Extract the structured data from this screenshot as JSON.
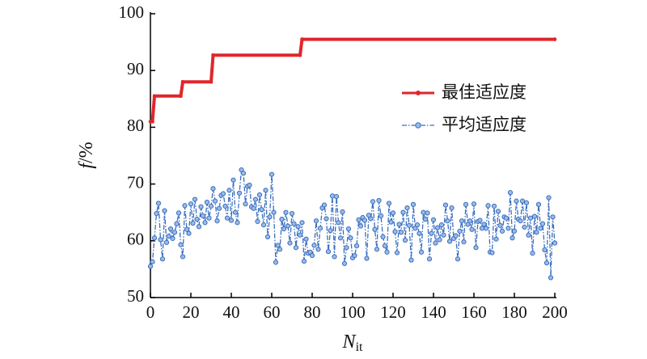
{
  "chart_data": {
    "type": "line",
    "xlabel": [
      "N",
      "it"
    ],
    "ylabel": [
      "f",
      "/%"
    ],
    "xlim": [
      0,
      200
    ],
    "xticks": [
      0,
      20,
      40,
      60,
      80,
      100,
      120,
      140,
      160,
      180,
      200
    ],
    "ylim": [
      50,
      100
    ],
    "yticks": [
      50,
      60,
      70,
      80,
      90,
      100
    ],
    "legend": "upper right",
    "series": [
      {
        "name": "最佳适应度",
        "color": "#e0262b",
        "style": "solid",
        "x": [
          0,
          1,
          2,
          15,
          16,
          30,
          31,
          74,
          75,
          200
        ],
        "values": [
          81,
          81,
          85.5,
          85.5,
          88,
          88,
          92.7,
          92.7,
          95.5,
          95.5
        ]
      },
      {
        "name": "平均适应度",
        "color": "#3a6fc0",
        "style": "dashdot",
        "x": [
          0,
          1,
          2,
          3,
          4,
          5,
          6,
          7,
          8,
          9,
          10,
          11,
          12,
          13,
          14,
          15,
          16,
          17,
          18,
          19,
          20,
          21,
          22,
          23,
          24,
          25,
          26,
          27,
          28,
          29,
          30,
          31,
          32,
          33,
          34,
          35,
          36,
          37,
          38,
          39,
          40,
          41,
          42,
          43,
          44,
          45,
          46,
          47,
          48,
          49,
          50,
          51,
          52,
          53,
          54,
          55,
          56,
          57,
          58,
          59,
          60,
          61,
          62,
          63,
          64,
          65,
          66,
          67,
          68,
          69,
          70,
          71,
          72,
          73,
          74,
          75,
          76,
          77,
          78,
          79,
          80,
          81,
          82,
          83,
          84,
          85,
          86,
          87,
          88,
          89,
          90,
          91,
          92,
          93,
          94,
          95,
          96,
          97,
          98,
          99,
          100,
          101,
          102,
          103,
          104,
          105,
          106,
          107,
          108,
          109,
          110,
          111,
          112,
          113,
          114,
          115,
          116,
          117,
          118,
          119,
          120,
          121,
          122,
          123,
          124,
          125,
          126,
          127,
          128,
          129,
          130,
          131,
          132,
          133,
          134,
          135,
          136,
          137,
          138,
          139,
          140,
          141,
          142,
          143,
          144,
          145,
          146,
          147,
          148,
          149,
          150,
          151,
          152,
          153,
          154,
          155,
          156,
          157,
          158,
          159,
          160,
          161,
          162,
          163,
          164,
          165,
          166,
          167,
          168,
          169,
          170,
          171,
          172,
          173,
          174,
          175,
          176,
          177,
          178,
          179,
          180,
          181,
          182,
          183,
          184,
          185,
          186,
          187,
          188,
          189,
          190,
          191,
          192,
          193,
          194,
          195,
          196,
          197,
          198,
          199,
          200
        ],
        "values": [
          55.5,
          56.3,
          60.5,
          64.8,
          66.6,
          60.2,
          56.8,
          65.3,
          59.7,
          60.8,
          62.1,
          60.4,
          61.5,
          63.0,
          64.9,
          59.3,
          57.2,
          66.2,
          62.0,
          61.3,
          66.5,
          63.1,
          67.3,
          63.8,
          62.5,
          66.0,
          64.4,
          63.2,
          66.8,
          64.0,
          66.1,
          69.2,
          67.0,
          63.5,
          65.7,
          68.0,
          68.3,
          66.1,
          64.0,
          68.9,
          63.6,
          70.7,
          65.0,
          63.2,
          68.4,
          72.5,
          71.9,
          66.5,
          69.6,
          69.8,
          66.0,
          65.7,
          67.3,
          63.4,
          68.1,
          65.5,
          62.8,
          68.9,
          60.7,
          64.2,
          71.7,
          65.0,
          56.2,
          59.2,
          58.5,
          63.8,
          62.1,
          65.0,
          62.6,
          59.6,
          64.8,
          63.0,
          58.8,
          62.5,
          61.0,
          63.2,
          56.4,
          60.3,
          57.8,
          58.0,
          57.4,
          59.2,
          63.5,
          58.5,
          62.2,
          65.8,
          66.3,
          63.9,
          58.1,
          61.8,
          67.9,
          57.2,
          67.8,
          63.2,
          60.5,
          65.1,
          56.0,
          58.8,
          62.1,
          60.5,
          57.0,
          57.4,
          59.1,
          63.7,
          62.6,
          64.1,
          63.6,
          56.9,
          64.5,
          63.9,
          66.9,
          62.0,
          58.5,
          67.1,
          64.4,
          60.7,
          59.1,
          58.0,
          66.6,
          63.3,
          64.9,
          61.6,
          57.9,
          62.9,
          61.5,
          65.0,
          60.1,
          65.8,
          62.7,
          56.6,
          66.4,
          62.2,
          62.8,
          61.3,
          58.0,
          65.0,
          63.8,
          64.9,
          56.8,
          61.3,
          63.7,
          59.6,
          62.3,
          60.2,
          62.8,
          61.0,
          66.3,
          63.5,
          59.9,
          65.8,
          60.4,
          60.9,
          56.8,
          61.7,
          63.5,
          59.8,
          66.4,
          62.9,
          63.5,
          62.0,
          66.5,
          58.8,
          63.4,
          63.6,
          62.2,
          62.9,
          62.2,
          66.2,
          58.0,
          57.9,
          66.1,
          60.3,
          65.2,
          62.7,
          61.7,
          64.2,
          64.0,
          62.2,
          68.5,
          60.5,
          61.7,
          67.0,
          63.8,
          63.5,
          67.0,
          62.4,
          66.7,
          61.0,
          64.0,
          57.8,
          64.3,
          61.5,
          66.4,
          62.2,
          63.0,
          58.4,
          56.1,
          67.6,
          53.5,
          64.2,
          59.6
        ]
      }
    ]
  }
}
